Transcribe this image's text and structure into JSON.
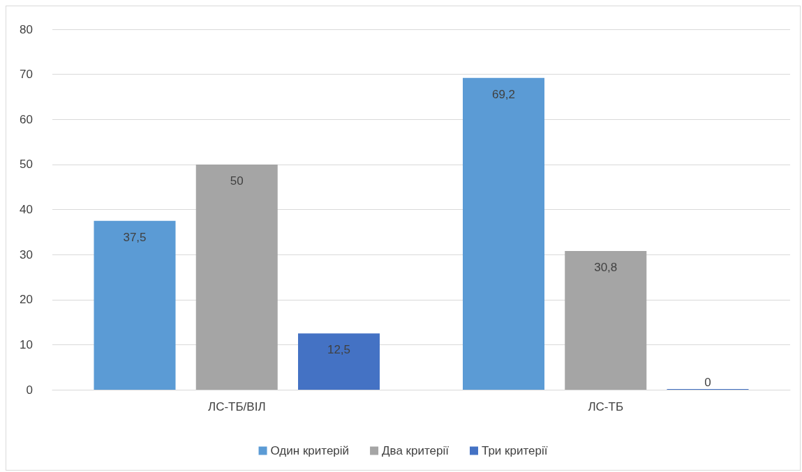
{
  "chart_data": {
    "type": "bar",
    "categories": [
      "ЛС-ТБ/ВІЛ",
      "ЛС-ТБ"
    ],
    "series": [
      {
        "name": "Один критерій",
        "color": "#5b9bd5",
        "values": [
          37.5,
          69.2
        ],
        "value_labels": [
          "37,5",
          "69,2"
        ]
      },
      {
        "name": "Два критерії",
        "color": "#a5a5a5",
        "values": [
          50,
          30.8
        ],
        "value_labels": [
          "50",
          "30,8"
        ]
      },
      {
        "name": "Три критерії",
        "color": "#4472c4",
        "values": [
          12.5,
          0
        ],
        "value_labels": [
          "12,5",
          "0"
        ]
      }
    ],
    "ylim": [
      0,
      80
    ],
    "yticks": [
      0,
      10,
      20,
      30,
      40,
      50,
      60,
      70,
      80
    ],
    "grid": "y",
    "legend": "bottom"
  }
}
